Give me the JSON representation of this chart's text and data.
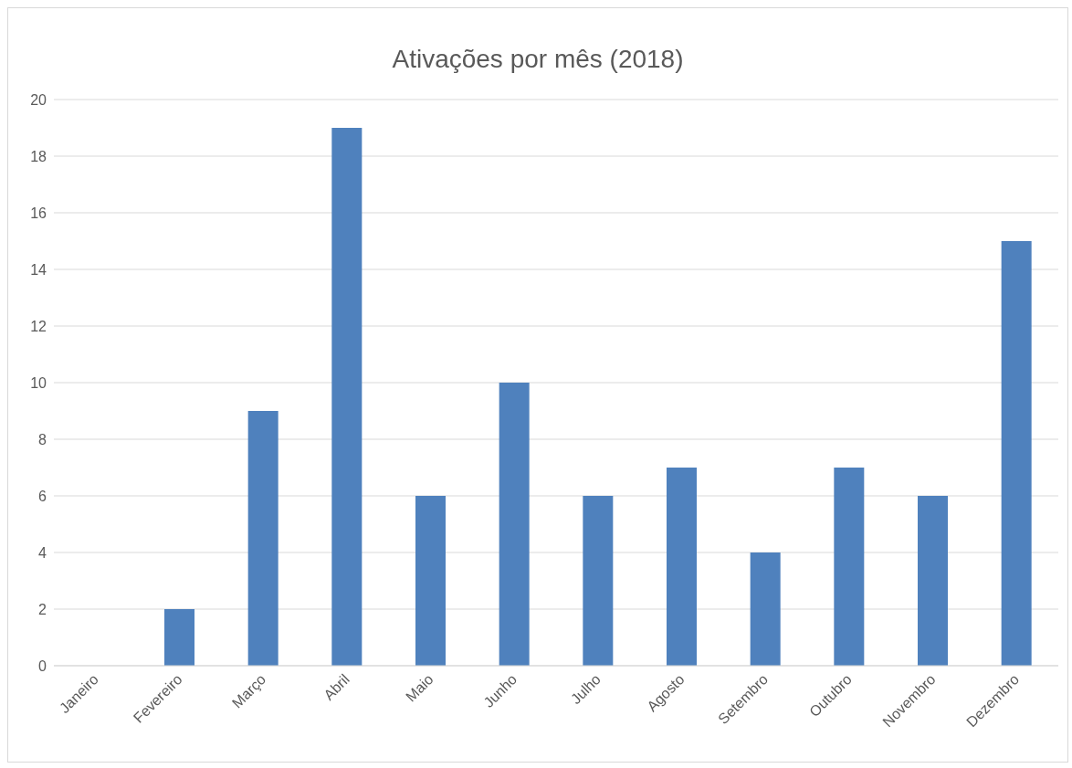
{
  "chart_data": {
    "type": "bar",
    "title": "Ativações por mês (2018)",
    "categories": [
      "Janeiro",
      "Fevereiro",
      "Março",
      "Abril",
      "Maio",
      "Junho",
      "Julho",
      "Agosto",
      "Setembro",
      "Outubro",
      "Novembro",
      "Dezembro"
    ],
    "values": [
      0,
      2,
      9,
      19,
      6,
      10,
      6,
      7,
      4,
      7,
      6,
      15
    ],
    "color": "#4f81bd",
    "ylim": [
      0,
      20
    ],
    "yticks": [
      0,
      2,
      4,
      6,
      8,
      10,
      12,
      14,
      16,
      18,
      20
    ],
    "grid": "y"
  }
}
